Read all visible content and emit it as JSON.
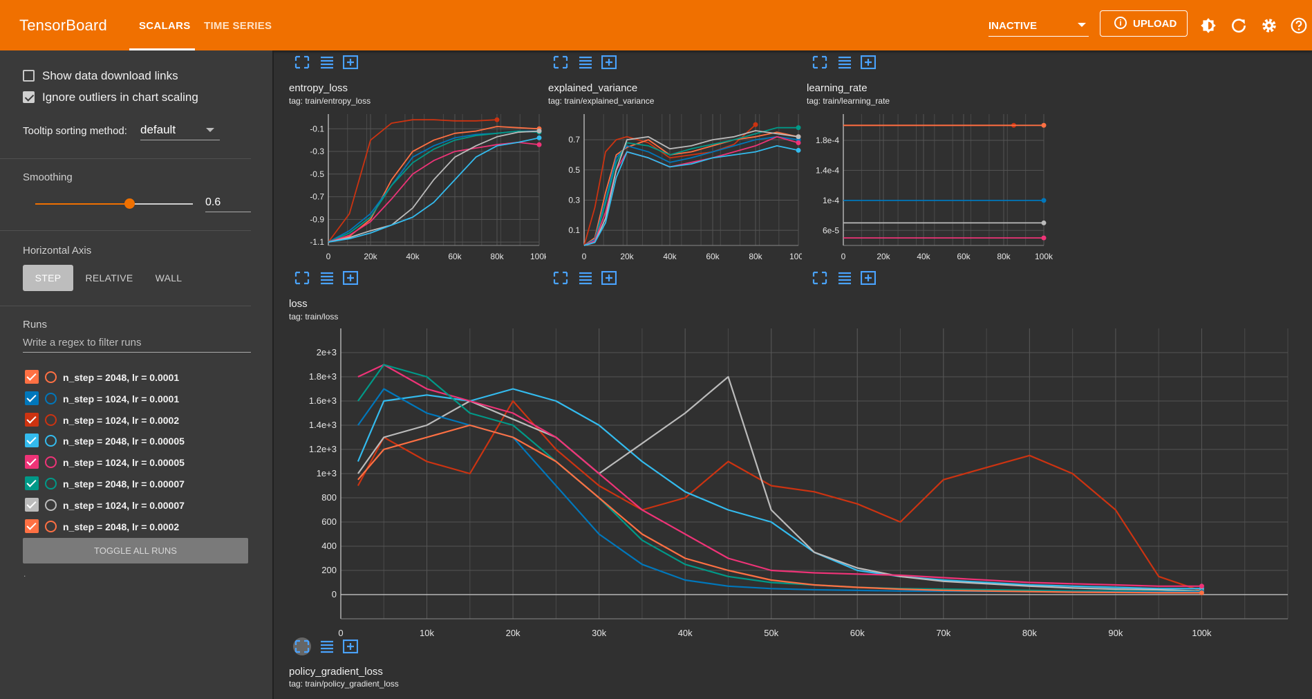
{
  "app": {
    "title": "TensorBoard"
  },
  "tabs": [
    {
      "label": "SCALARS",
      "active": true
    },
    {
      "label": "TIME SERIES",
      "active": false
    }
  ],
  "header": {
    "status_select": "INACTIVE",
    "upload_label": "UPLOAD",
    "icons": [
      "theme-icon",
      "refresh-icon",
      "settings-icon",
      "help-icon"
    ]
  },
  "sidebar": {
    "show_download_links": {
      "label": "Show data download links",
      "checked": false
    },
    "ignore_outliers": {
      "label": "Ignore outliers in chart scaling",
      "checked": true
    },
    "tooltip_sorting": {
      "label": "Tooltip sorting method:",
      "value": "default"
    },
    "smoothing": {
      "label": "Smoothing",
      "value": "0.6",
      "level": 0.6
    },
    "horizontal_axis": {
      "label": "Horizontal Axis",
      "options": [
        "STEP",
        "RELATIVE",
        "WALL"
      ],
      "selected": "STEP"
    },
    "runs": {
      "label": "Runs",
      "filter_placeholder": "Write a regex to filter runs",
      "items": [
        {
          "name": "n_step = 2048, lr = 0.0001",
          "color": "#ff7043",
          "checked": true
        },
        {
          "name": "n_step = 1024, lr = 0.0001",
          "color": "#0077bb",
          "checked": true
        },
        {
          "name": "n_step = 1024, lr = 0.0002",
          "color": "#cc3311",
          "checked": true
        },
        {
          "name": "n_step = 2048, lr = 0.00005",
          "color": "#33bbee",
          "checked": true
        },
        {
          "name": "n_step = 1024, lr = 0.00005",
          "color": "#ee3377",
          "checked": true
        },
        {
          "name": "n_step = 2048, lr = 0.00007",
          "color": "#009988",
          "checked": true
        },
        {
          "name": "n_step = 1024, lr = 0.00007",
          "color": "#bbbbbb",
          "checked": true
        },
        {
          "name": "n_step = 2048, lr = 0.0002",
          "color": "#ff7043",
          "checked": true
        }
      ],
      "toggle_all_label": "TOGGLE ALL RUNS"
    },
    "footer_dot": "."
  },
  "charts": {
    "entropy_loss": {
      "title": "entropy_loss",
      "tag": "tag: train/entropy_loss"
    },
    "explained_variance": {
      "title": "explained_variance",
      "tag": "tag: train/explained_variance"
    },
    "learning_rate": {
      "title": "learning_rate",
      "tag": "tag: train/learning_rate"
    },
    "loss": {
      "title": "loss",
      "tag": "tag: train/loss"
    },
    "policy_gradient_loss": {
      "title": "policy_gradient_loss",
      "tag": "tag: train/policy_gradient_loss"
    }
  },
  "chart_data": [
    {
      "name": "entropy_loss",
      "type": "line",
      "x_ticks": [
        "0",
        "20k",
        "40k",
        "60k",
        "80k",
        "100k"
      ],
      "y_ticks": [
        "-0.1",
        "-0.3",
        "-0.5",
        "-0.7",
        "-0.9",
        "-1.1"
      ],
      "xlim": [
        0,
        100000
      ],
      "ylim": [
        -1.13,
        0.03
      ],
      "x": [
        0,
        10000,
        20000,
        30000,
        40000,
        50000,
        60000,
        70000,
        80000,
        90000,
        100000
      ],
      "series": [
        {
          "color": "#cc3311",
          "values": [
            -1.1,
            -0.85,
            -0.2,
            -0.05,
            -0.02,
            -0.02,
            -0.03,
            -0.03,
            -0.02,
            null,
            null
          ]
        },
        {
          "color": "#ff7043",
          "values": [
            -1.1,
            -1.05,
            -0.9,
            -0.55,
            -0.3,
            -0.2,
            -0.14,
            -0.12,
            -0.08,
            -0.09,
            -0.1
          ]
        },
        {
          "color": "#0077bb",
          "values": [
            -1.1,
            -1.0,
            -0.85,
            -0.6,
            -0.35,
            -0.25,
            -0.18,
            -0.15,
            -0.14,
            -0.12,
            -0.12
          ]
        },
        {
          "color": "#009988",
          "values": [
            -1.1,
            -1.02,
            -0.88,
            -0.6,
            -0.4,
            -0.28,
            -0.2,
            -0.16,
            -0.14,
            -0.12,
            -0.13
          ]
        },
        {
          "color": "#ee3377",
          "values": [
            -1.1,
            -1.04,
            -0.92,
            -0.72,
            -0.5,
            -0.38,
            -0.3,
            -0.27,
            -0.24,
            -0.22,
            -0.24
          ]
        },
        {
          "color": "#bbbbbb",
          "values": [
            -1.1,
            -1.06,
            -1.0,
            -0.95,
            -0.8,
            -0.55,
            -0.35,
            -0.25,
            -0.17,
            -0.13,
            -0.12
          ]
        },
        {
          "color": "#33bbee",
          "values": [
            -1.1,
            -1.07,
            -1.02,
            -0.95,
            -0.88,
            -0.75,
            -0.55,
            -0.35,
            -0.25,
            -0.22,
            -0.18
          ]
        }
      ]
    },
    {
      "name": "explained_variance",
      "type": "line",
      "x_ticks": [
        "0",
        "20k",
        "40k",
        "60k",
        "80k",
        "100k"
      ],
      "y_ticks": [
        "0.7",
        "0.5",
        "0.3",
        "0.1"
      ],
      "xlim": [
        0,
        100000
      ],
      "ylim": [
        0.0,
        0.87
      ],
      "x": [
        0,
        5000,
        10000,
        15000,
        20000,
        30000,
        40000,
        50000,
        60000,
        70000,
        80000,
        90000,
        100000
      ],
      "series": [
        {
          "color": "#cc3311",
          "values": [
            0.0,
            0.25,
            0.62,
            0.7,
            0.72,
            0.68,
            0.58,
            0.6,
            0.62,
            0.67,
            0.8,
            null,
            null
          ]
        },
        {
          "color": "#ff7043",
          "values": [
            0.0,
            0.05,
            0.35,
            0.6,
            0.65,
            0.7,
            0.6,
            0.62,
            0.66,
            0.7,
            0.72,
            0.75,
            0.72
          ]
        },
        {
          "color": "#0077bb",
          "values": [
            0.0,
            0.04,
            0.3,
            0.58,
            0.66,
            0.62,
            0.55,
            0.58,
            0.62,
            0.66,
            0.7,
            0.72,
            0.7
          ]
        },
        {
          "color": "#009988",
          "values": [
            0.0,
            0.03,
            0.28,
            0.55,
            0.68,
            0.66,
            0.6,
            0.64,
            0.67,
            0.7,
            0.74,
            0.78,
            0.78
          ]
        },
        {
          "color": "#ee3377",
          "values": [
            0.0,
            0.03,
            0.22,
            0.5,
            0.62,
            0.58,
            0.52,
            0.55,
            0.58,
            0.62,
            0.66,
            0.72,
            0.68
          ]
        },
        {
          "color": "#bbbbbb",
          "values": [
            0.0,
            0.02,
            0.18,
            0.5,
            0.7,
            0.72,
            0.64,
            0.66,
            0.7,
            0.72,
            0.76,
            0.74,
            0.72
          ]
        },
        {
          "color": "#33bbee",
          "values": [
            0.0,
            0.02,
            0.15,
            0.45,
            0.62,
            0.58,
            0.52,
            0.54,
            0.58,
            0.6,
            0.62,
            0.66,
            0.63
          ]
        }
      ]
    },
    {
      "name": "learning_rate",
      "type": "line",
      "x_ticks": [
        "0",
        "20k",
        "40k",
        "60k",
        "80k",
        "100k"
      ],
      "y_ticks": [
        "1.8e-4",
        "1.4e-4",
        "1e-4",
        "6e-5"
      ],
      "xlim": [
        0,
        100000
      ],
      "ylim": [
        4e-05,
        0.000215
      ],
      "x": [
        0,
        100000
      ],
      "series": [
        {
          "color": "#cc3311",
          "values": [
            0.0002,
            0.0002
          ],
          "end_x": 85000
        },
        {
          "color": "#ff7043",
          "values": [
            0.0002,
            0.0002
          ]
        },
        {
          "color": "#0077bb",
          "values": [
            0.0001,
            0.0001
          ]
        },
        {
          "color": "#bbbbbb",
          "values": [
            7e-05,
            7e-05
          ]
        },
        {
          "color": "#ee3377",
          "values": [
            5e-05,
            5e-05
          ]
        }
      ]
    },
    {
      "name": "loss",
      "type": "line",
      "x_ticks": [
        "0",
        "10k",
        "20k",
        "30k",
        "40k",
        "50k",
        "60k",
        "70k",
        "80k",
        "90k",
        "100k"
      ],
      "y_ticks": [
        "2e+3",
        "1.8e+3",
        "1.6e+3",
        "1.4e+3",
        "1.2e+3",
        "1e+3",
        "800",
        "600",
        "400",
        "200",
        "0"
      ],
      "xlim": [
        0,
        110000
      ],
      "ylim": [
        -200,
        2200
      ],
      "x": [
        2000,
        5000,
        10000,
        15000,
        20000,
        25000,
        30000,
        35000,
        40000,
        45000,
        50000,
        55000,
        60000,
        65000,
        70000,
        75000,
        80000,
        85000,
        90000,
        95000,
        100000
      ],
      "series": [
        {
          "color": "#cc3311",
          "values": [
            900,
            1300,
            1100,
            1000,
            1600,
            1200,
            900,
            700,
            800,
            1100,
            900,
            850,
            750,
            600,
            950,
            1050,
            1150,
            1000,
            700,
            150,
            30
          ]
        },
        {
          "color": "#33bbee",
          "values": [
            1100,
            1600,
            1650,
            1600,
            1700,
            1600,
            1400,
            1100,
            850,
            700,
            600,
            350,
            200,
            150,
            120,
            100,
            80,
            70,
            60,
            50,
            50
          ]
        },
        {
          "color": "#bbbbbb",
          "values": [
            1000,
            1300,
            1400,
            1600,
            1450,
            1300,
            1000,
            1250,
            1500,
            1800,
            700,
            350,
            220,
            150,
            110,
            90,
            70,
            55,
            45,
            40,
            30
          ]
        },
        {
          "color": "#ee3377",
          "values": [
            1800,
            1900,
            1700,
            1600,
            1500,
            1300,
            1000,
            700,
            500,
            300,
            200,
            180,
            170,
            160,
            140,
            120,
            100,
            90,
            80,
            70,
            70
          ]
        },
        {
          "color": "#009988",
          "values": [
            1600,
            1900,
            1800,
            1500,
            1400,
            1100,
            800,
            450,
            250,
            150,
            100,
            80,
            60,
            50,
            45,
            40,
            35,
            30,
            30,
            25,
            25
          ]
        },
        {
          "color": "#0077bb",
          "values": [
            1400,
            1700,
            1500,
            1400,
            1300,
            900,
            500,
            250,
            120,
            70,
            50,
            40,
            35,
            30,
            28,
            26,
            25,
            24,
            23,
            22,
            22
          ]
        },
        {
          "color": "#ff7043",
          "values": [
            950,
            1200,
            1300,
            1400,
            1300,
            1100,
            800,
            500,
            300,
            200,
            120,
            80,
            60,
            45,
            35,
            30,
            25,
            20,
            18,
            15,
            15
          ]
        }
      ]
    }
  ]
}
